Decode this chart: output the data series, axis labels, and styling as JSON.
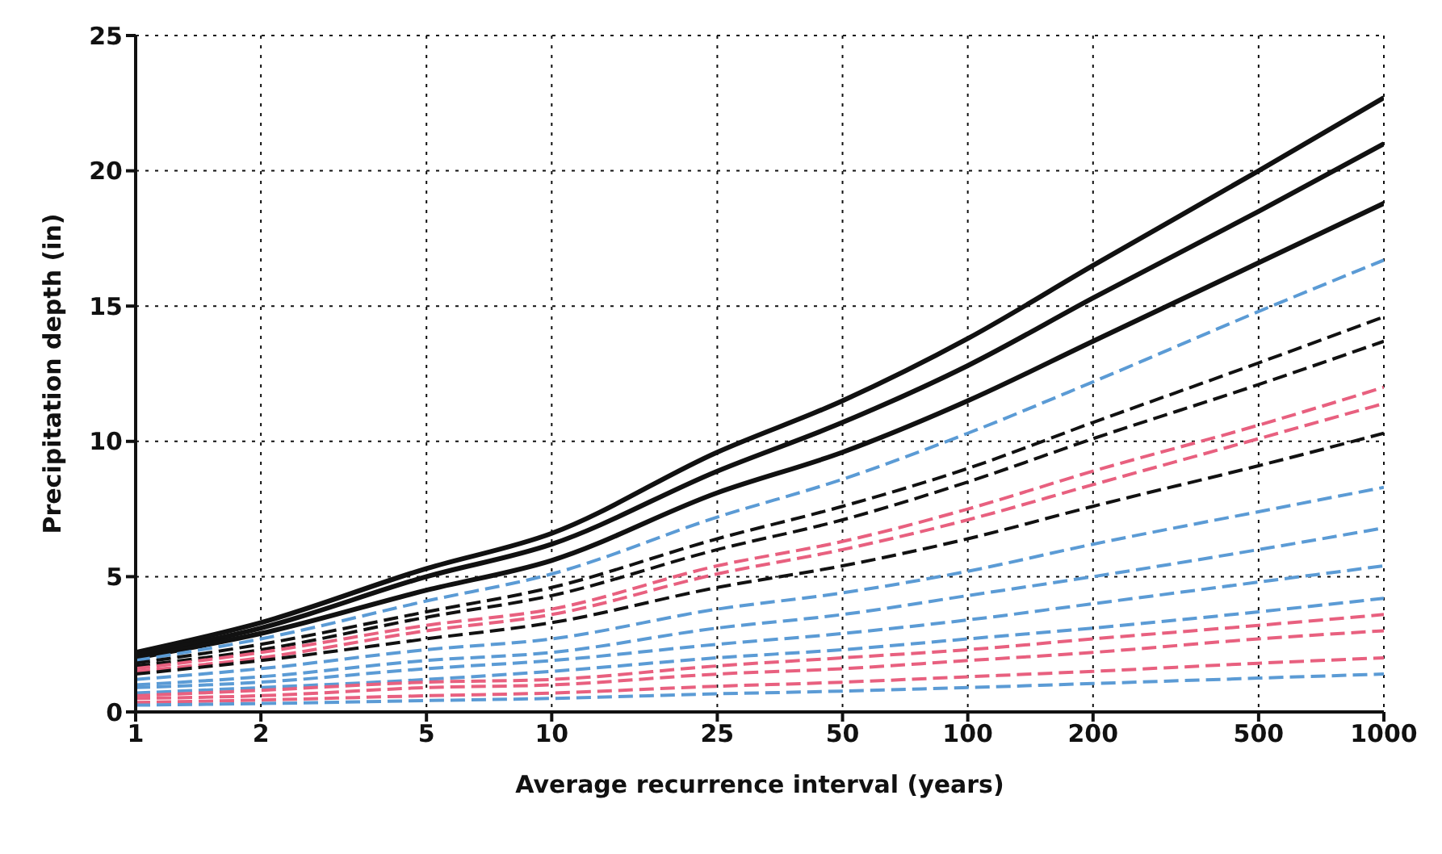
{
  "chart_data": {
    "type": "line",
    "xlabel": "Average recurrence interval (years)",
    "ylabel": "Precipitation depth (in)",
    "log": "x",
    "x": [
      1,
      2,
      5,
      10,
      25,
      50,
      100,
      200,
      500,
      1000
    ],
    "xlim": [
      1,
      1000
    ],
    "xticks": [
      1,
      2,
      5,
      10,
      25,
      50,
      100,
      200,
      500,
      1000
    ],
    "ylim": [
      0,
      25
    ],
    "yticks": [
      0,
      5,
      10,
      15,
      20,
      25
    ],
    "grid": true,
    "series": [
      {
        "color": "#111111",
        "line_style": "solid",
        "values": [
          2.2,
          3.3,
          5.3,
          6.6,
          9.6,
          11.5,
          13.8,
          16.5,
          20.0,
          22.7
        ]
      },
      {
        "color": "#111111",
        "line_style": "solid",
        "values": [
          2.1,
          3.1,
          5.0,
          6.2,
          8.9,
          10.7,
          12.8,
          15.3,
          18.5,
          21.0
        ]
      },
      {
        "color": "#111111",
        "line_style": "solid",
        "values": [
          2.0,
          2.9,
          4.5,
          5.6,
          8.1,
          9.6,
          11.5,
          13.7,
          16.6,
          18.8
        ]
      },
      {
        "color": "#5b9bd5",
        "line_style": "dashed",
        "values": [
          1.9,
          2.7,
          4.1,
          5.1,
          7.2,
          8.6,
          10.3,
          12.2,
          14.8,
          16.7
        ]
      },
      {
        "color": "#111111",
        "line_style": "dashed",
        "values": [
          1.8,
          2.5,
          3.7,
          4.6,
          6.4,
          7.6,
          9.0,
          10.7,
          12.9,
          14.6
        ]
      },
      {
        "color": "#111111",
        "line_style": "dashed",
        "values": [
          1.7,
          2.3,
          3.5,
          4.3,
          6.0,
          7.1,
          8.5,
          10.1,
          12.1,
          13.7
        ]
      },
      {
        "color": "#e8607f",
        "line_style": "dashed",
        "values": [
          1.6,
          2.2,
          3.2,
          3.8,
          5.4,
          6.3,
          7.5,
          8.9,
          10.6,
          12.0
        ]
      },
      {
        "color": "#e8607f",
        "line_style": "dashed",
        "values": [
          1.5,
          2.0,
          3.0,
          3.6,
          5.1,
          6.0,
          7.1,
          8.4,
          10.1,
          11.4
        ]
      },
      {
        "color": "#111111",
        "line_style": "dashed",
        "values": [
          1.4,
          1.9,
          2.7,
          3.3,
          4.6,
          5.4,
          6.4,
          7.6,
          9.1,
          10.3
        ]
      },
      {
        "color": "#5b9bd5",
        "line_style": "dashed",
        "values": [
          1.2,
          1.6,
          2.3,
          2.7,
          3.8,
          4.4,
          5.2,
          6.2,
          7.4,
          8.3
        ]
      },
      {
        "color": "#5b9bd5",
        "line_style": "dashed",
        "values": [
          1.0,
          1.3,
          1.9,
          2.2,
          3.1,
          3.6,
          4.3,
          5.0,
          6.0,
          6.8
        ]
      },
      {
        "color": "#5b9bd5",
        "line_style": "dashed",
        "values": [
          0.9,
          1.1,
          1.6,
          1.9,
          2.5,
          2.9,
          3.4,
          4.0,
          4.8,
          5.4
        ]
      },
      {
        "color": "#5b9bd5",
        "line_style": "dashed",
        "values": [
          0.7,
          0.9,
          1.2,
          1.5,
          2.0,
          2.3,
          2.7,
          3.1,
          3.7,
          4.2
        ]
      },
      {
        "color": "#e8607f",
        "line_style": "dashed",
        "values": [
          0.6,
          0.8,
          1.1,
          1.2,
          1.7,
          2.0,
          2.3,
          2.7,
          3.2,
          3.6
        ]
      },
      {
        "color": "#e8607f",
        "line_style": "dashed",
        "values": [
          0.5,
          0.6,
          0.9,
          1.0,
          1.4,
          1.6,
          1.9,
          2.2,
          2.7,
          3.0
        ]
      },
      {
        "color": "#e8607f",
        "line_style": "dashed",
        "values": [
          0.35,
          0.44,
          0.6,
          0.7,
          0.95,
          1.1,
          1.3,
          1.5,
          1.8,
          2.0
        ]
      },
      {
        "color": "#5b9bd5",
        "line_style": "dashed",
        "values": [
          0.25,
          0.31,
          0.42,
          0.5,
          0.67,
          0.77,
          0.9,
          1.05,
          1.25,
          1.4
        ]
      }
    ]
  }
}
